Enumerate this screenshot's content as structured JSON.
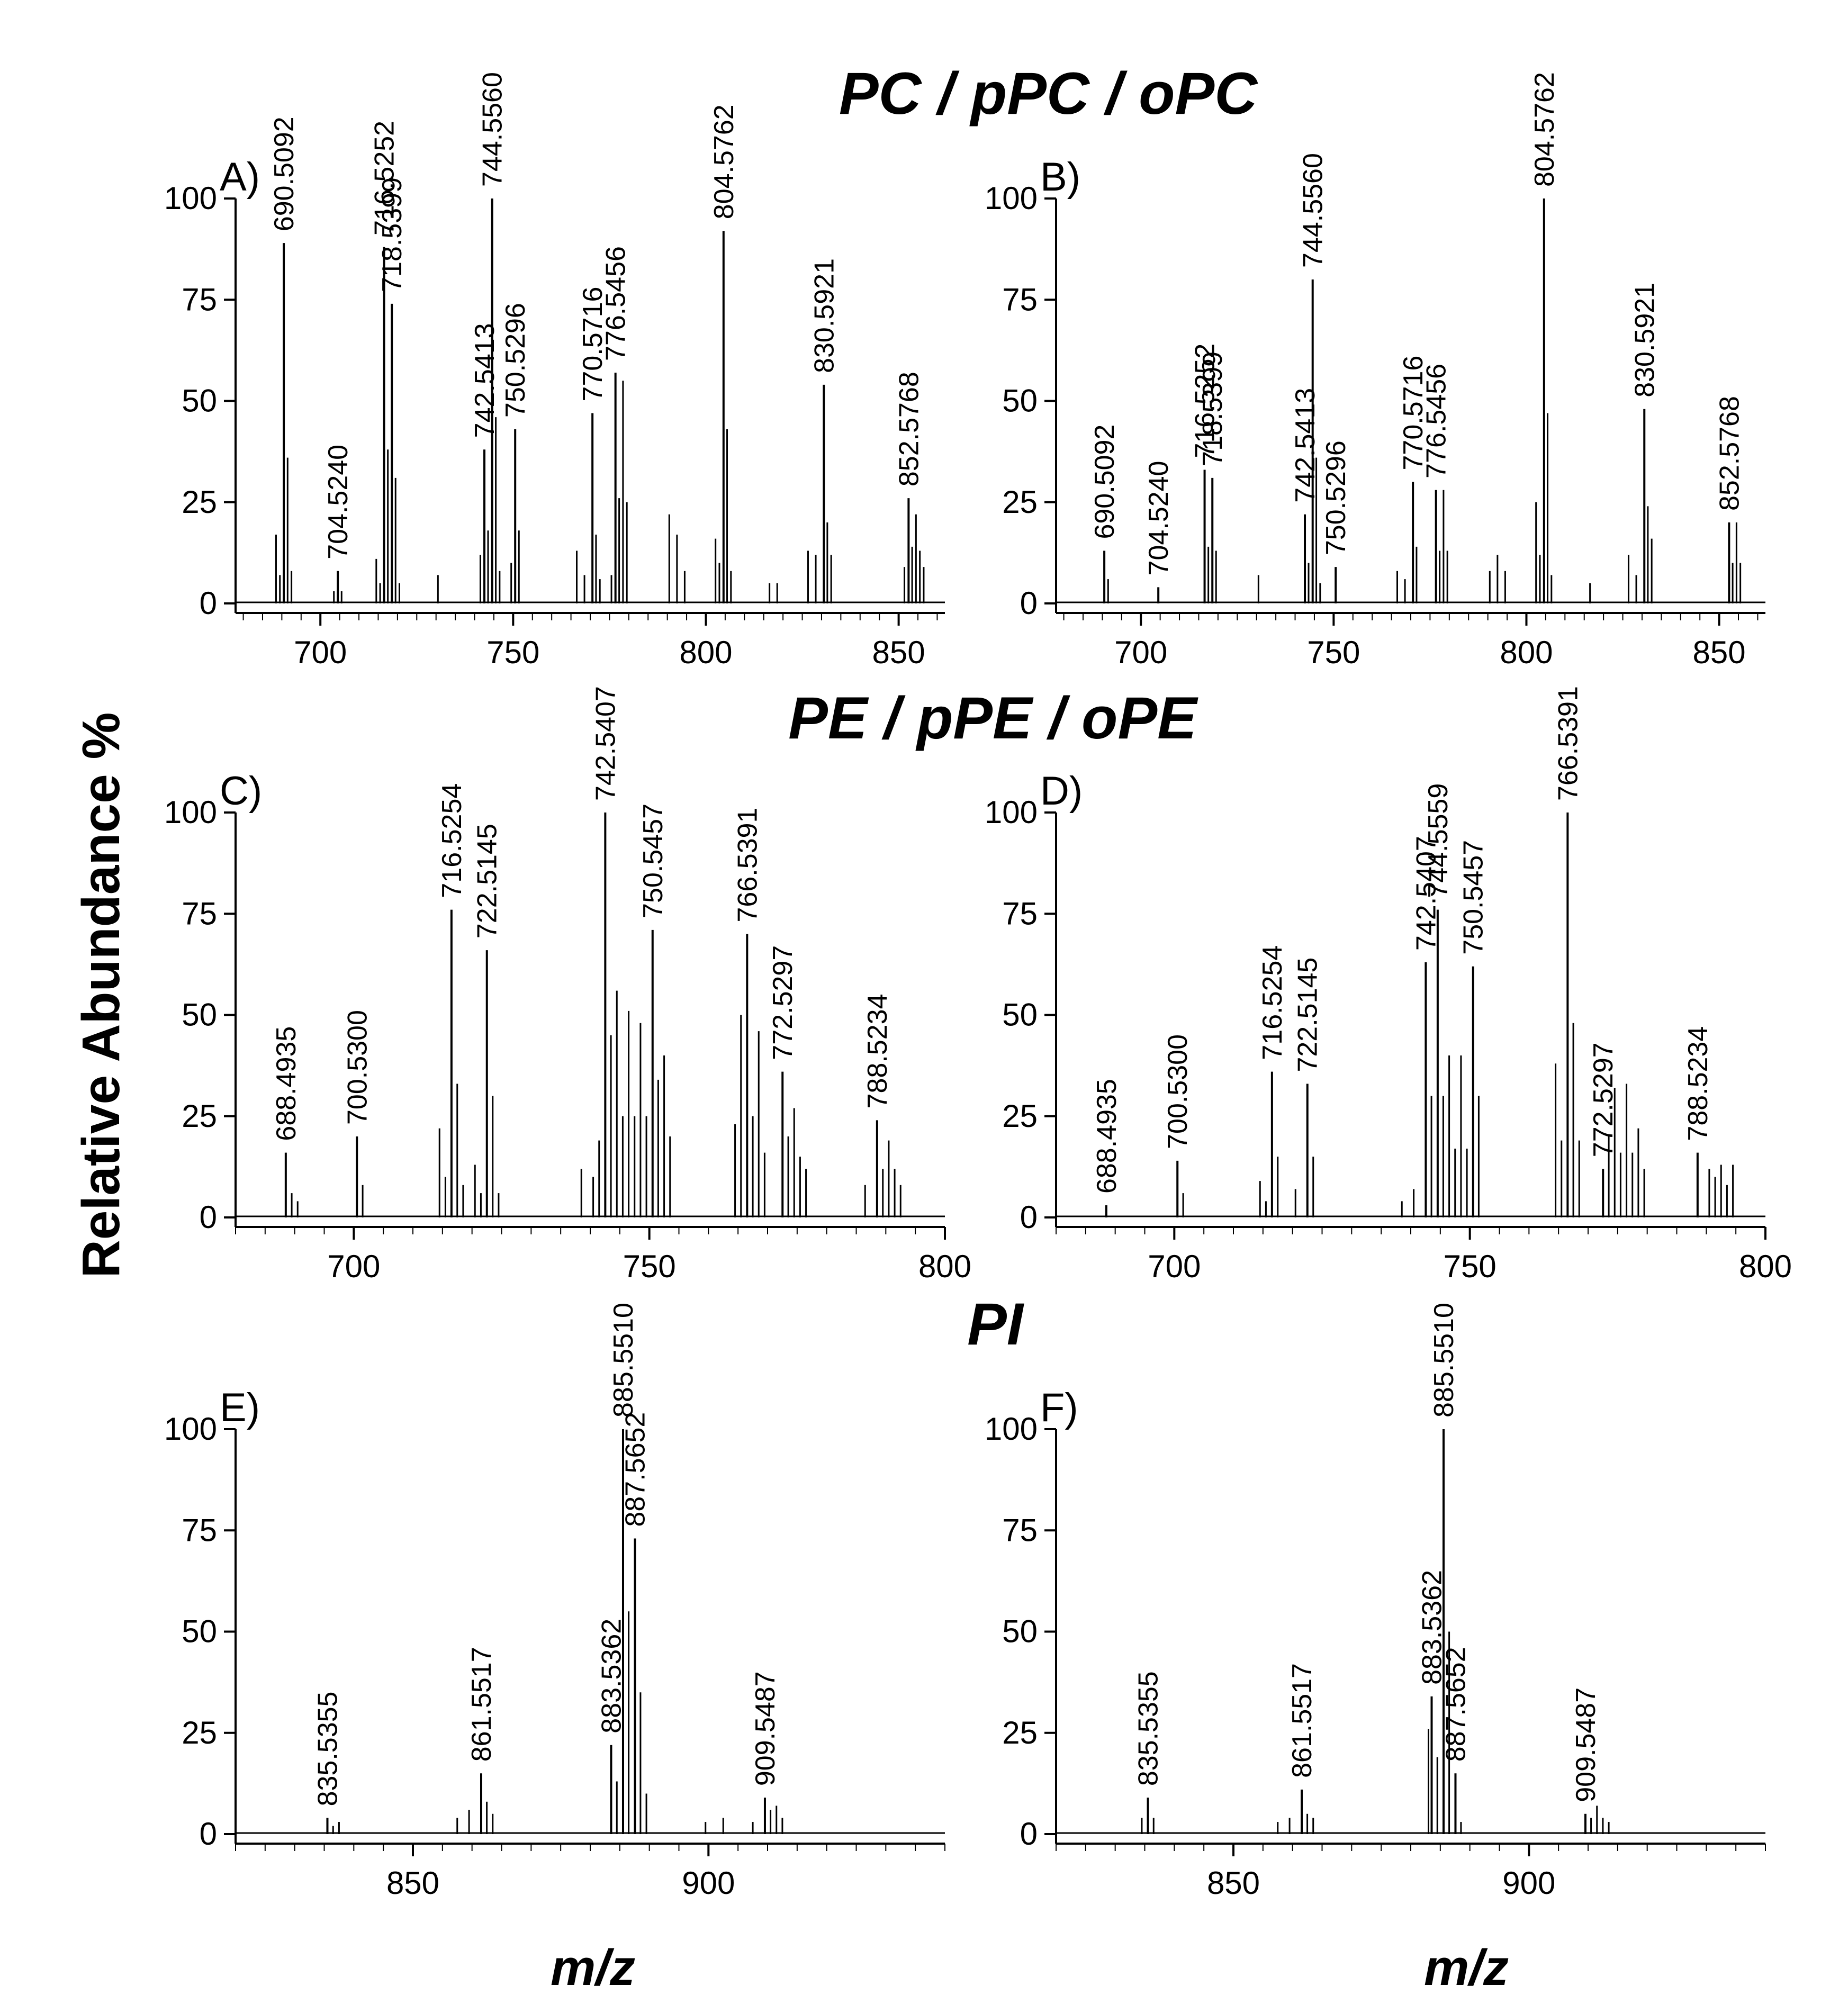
{
  "figure": {
    "section_titles": [
      "PC / pPC / oPC",
      "PE / pPE / oPE",
      "PI"
    ],
    "y_axis_label": "Relative Abundance %",
    "x_axis_label": "m/z"
  },
  "chart_data": [
    {
      "type": "bar",
      "panel": "A)",
      "xlim": [
        678,
        862
      ],
      "ylim": [
        0,
        100
      ],
      "xticks": [
        700,
        750,
        800,
        850
      ],
      "yticks": [
        0,
        25,
        50,
        75,
        100
      ],
      "labeled_peaks": [
        {
          "x": 690.5092,
          "y": 89,
          "label": "690.5092"
        },
        {
          "x": 704.524,
          "y": 8,
          "label": "704.5240"
        },
        {
          "x": 716.5252,
          "y": 88,
          "label": "716.5252"
        },
        {
          "x": 718.5399,
          "y": 74,
          "label": "718.5399"
        },
        {
          "x": 742.5413,
          "y": 38,
          "label": "742.5413"
        },
        {
          "x": 744.556,
          "y": 100,
          "label": "744.5560"
        },
        {
          "x": 750.5296,
          "y": 43,
          "label": "750.5296"
        },
        {
          "x": 770.5716,
          "y": 47,
          "label": "770.5716"
        },
        {
          "x": 776.5456,
          "y": 57,
          "label": "776.5456"
        },
        {
          "x": 804.5762,
          "y": 92,
          "label": "804.5762"
        },
        {
          "x": 830.5921,
          "y": 54,
          "label": "830.5921"
        },
        {
          "x": 852.5768,
          "y": 26,
          "label": "852.5768"
        }
      ],
      "minor_peaks": [
        [
          688.5,
          17
        ],
        [
          689.5,
          7
        ],
        [
          691.5,
          36
        ],
        [
          692.5,
          8
        ],
        [
          703.5,
          3
        ],
        [
          705.5,
          3
        ],
        [
          714.5,
          11
        ],
        [
          715.5,
          5
        ],
        [
          717.5,
          38
        ],
        [
          719.5,
          31
        ],
        [
          720.5,
          5
        ],
        [
          730.5,
          7
        ],
        [
          741.5,
          12
        ],
        [
          743.5,
          18
        ],
        [
          745.5,
          46
        ],
        [
          746.5,
          8
        ],
        [
          749.5,
          10
        ],
        [
          751.5,
          18
        ],
        [
          766.5,
          13
        ],
        [
          768.5,
          7
        ],
        [
          771.5,
          17
        ],
        [
          772.5,
          6
        ],
        [
          775.5,
          7
        ],
        [
          777.5,
          26
        ],
        [
          778.5,
          55
        ],
        [
          779.5,
          25
        ],
        [
          790.5,
          22
        ],
        [
          792.5,
          17
        ],
        [
          794.5,
          8
        ],
        [
          802.5,
          16
        ],
        [
          803.5,
          10
        ],
        [
          805.5,
          43
        ],
        [
          806.5,
          8
        ],
        [
          816.5,
          5
        ],
        [
          818.5,
          5
        ],
        [
          826.5,
          13
        ],
        [
          828.5,
          12
        ],
        [
          831.5,
          20
        ],
        [
          832.5,
          12
        ],
        [
          851.5,
          9
        ],
        [
          853.5,
          14
        ],
        [
          854.5,
          22
        ],
        [
          855.5,
          13
        ],
        [
          856.5,
          9
        ]
      ]
    },
    {
      "type": "bar",
      "panel": "B)",
      "xlim": [
        678,
        862
      ],
      "ylim": [
        0,
        100
      ],
      "xticks": [
        700,
        750,
        800,
        850
      ],
      "yticks": [
        0,
        25,
        50,
        75,
        100
      ],
      "labeled_peaks": [
        {
          "x": 690.5092,
          "y": 13,
          "label": "690.5092"
        },
        {
          "x": 704.524,
          "y": 4,
          "label": "704.5240"
        },
        {
          "x": 716.5252,
          "y": 33,
          "label": "716.5252"
        },
        {
          "x": 718.5399,
          "y": 31,
          "label": "718.5399"
        },
        {
          "x": 742.5413,
          "y": 22,
          "label": "742.5413"
        },
        {
          "x": 744.556,
          "y": 80,
          "label": "744.5560"
        },
        {
          "x": 750.5296,
          "y": 9,
          "label": "750.5296"
        },
        {
          "x": 770.5716,
          "y": 30,
          "label": "770.5716"
        },
        {
          "x": 776.5456,
          "y": 28,
          "label": "776.5456"
        },
        {
          "x": 804.5762,
          "y": 100,
          "label": "804.5762"
        },
        {
          "x": 830.5921,
          "y": 48,
          "label": "830.5921"
        },
        {
          "x": 852.5768,
          "y": 20,
          "label": "852.5768"
        }
      ],
      "minor_peaks": [
        [
          691.5,
          6
        ],
        [
          717.5,
          14
        ],
        [
          719.5,
          13
        ],
        [
          730.5,
          7
        ],
        [
          743.5,
          10
        ],
        [
          745.5,
          36
        ],
        [
          746.5,
          5
        ],
        [
          766.5,
          8
        ],
        [
          768.5,
          6
        ],
        [
          771.5,
          14
        ],
        [
          777.5,
          13
        ],
        [
          778.5,
          28
        ],
        [
          779.5,
          13
        ],
        [
          790.5,
          8
        ],
        [
          792.5,
          12
        ],
        [
          794.5,
          8
        ],
        [
          802.5,
          25
        ],
        [
          803.5,
          12
        ],
        [
          805.5,
          47
        ],
        [
          806.5,
          7
        ],
        [
          816.5,
          5
        ],
        [
          826.5,
          12
        ],
        [
          828.5,
          7
        ],
        [
          831.5,
          24
        ],
        [
          832.5,
          16
        ],
        [
          853.5,
          10
        ],
        [
          854.5,
          20
        ],
        [
          855.5,
          10
        ]
      ]
    },
    {
      "type": "bar",
      "panel": "C)",
      "xlim": [
        680,
        800
      ],
      "ylim": [
        0,
        100
      ],
      "xticks": [
        700,
        750,
        800
      ],
      "yticks": [
        0,
        25,
        50,
        75,
        100
      ],
      "labeled_peaks": [
        {
          "x": 688.4935,
          "y": 16,
          "label": "688.4935"
        },
        {
          "x": 700.53,
          "y": 20,
          "label": "700.5300"
        },
        {
          "x": 716.5254,
          "y": 76,
          "label": "716.5254"
        },
        {
          "x": 722.5145,
          "y": 66,
          "label": "722.5145"
        },
        {
          "x": 742.5407,
          "y": 100,
          "label": "742.5407"
        },
        {
          "x": 750.5457,
          "y": 71,
          "label": "750.5457"
        },
        {
          "x": 766.5391,
          "y": 70,
          "label": "766.5391"
        },
        {
          "x": 772.5297,
          "y": 36,
          "label": "772.5297"
        },
        {
          "x": 788.5234,
          "y": 24,
          "label": "788.5234"
        }
      ],
      "minor_peaks": [
        [
          689.5,
          6
        ],
        [
          690.5,
          4
        ],
        [
          701.5,
          8
        ],
        [
          714.5,
          22
        ],
        [
          715.5,
          10
        ],
        [
          717.5,
          33
        ],
        [
          718.5,
          8
        ],
        [
          720.5,
          13
        ],
        [
          721.5,
          6
        ],
        [
          723.5,
          30
        ],
        [
          724.5,
          6
        ],
        [
          738.5,
          12
        ],
        [
          740.5,
          10
        ],
        [
          741.5,
          19
        ],
        [
          743.5,
          45
        ],
        [
          744.5,
          56
        ],
        [
          745.5,
          25
        ],
        [
          746.5,
          51
        ],
        [
          747.5,
          25
        ],
        [
          748.5,
          48
        ],
        [
          749.5,
          25
        ],
        [
          751.5,
          34
        ],
        [
          752.5,
          40
        ],
        [
          753.5,
          20
        ],
        [
          764.5,
          23
        ],
        [
          765.5,
          50
        ],
        [
          767.5,
          25
        ],
        [
          768.5,
          46
        ],
        [
          769.5,
          16
        ],
        [
          773.5,
          20
        ],
        [
          774.5,
          27
        ],
        [
          775.5,
          15
        ],
        [
          776.5,
          12
        ],
        [
          786.5,
          8
        ],
        [
          789.5,
          12
        ],
        [
          790.5,
          19
        ],
        [
          791.5,
          12
        ],
        [
          792.5,
          8
        ]
      ]
    },
    {
      "type": "bar",
      "panel": "D)",
      "xlim": [
        680,
        800
      ],
      "ylim": [
        0,
        100
      ],
      "xticks": [
        700,
        750,
        800
      ],
      "yticks": [
        0,
        25,
        50,
        75,
        100
      ],
      "labeled_peaks": [
        {
          "x": 688.4935,
          "y": 3,
          "label": "688.4935"
        },
        {
          "x": 700.53,
          "y": 14,
          "label": "700.5300"
        },
        {
          "x": 716.5254,
          "y": 36,
          "label": "716.5254"
        },
        {
          "x": 722.5145,
          "y": 33,
          "label": "722.5145"
        },
        {
          "x": 742.5407,
          "y": 63,
          "label": "742.5407"
        },
        {
          "x": 744.5559,
          "y": 76,
          "label": "744.5559"
        },
        {
          "x": 750.5457,
          "y": 62,
          "label": "750.5457"
        },
        {
          "x": 766.5391,
          "y": 100,
          "label": "766.5391"
        },
        {
          "x": 772.5297,
          "y": 12,
          "label": "772.5297"
        },
        {
          "x": 788.5234,
          "y": 16,
          "label": "788.5234"
        }
      ],
      "minor_peaks": [
        [
          701.5,
          6
        ],
        [
          714.5,
          9
        ],
        [
          715.5,
          4
        ],
        [
          717.5,
          15
        ],
        [
          720.5,
          7
        ],
        [
          723.5,
          15
        ],
        [
          738.5,
          4
        ],
        [
          740.5,
          7
        ],
        [
          743.5,
          30
        ],
        [
          745.5,
          30
        ],
        [
          746.5,
          40
        ],
        [
          747.5,
          17
        ],
        [
          748.5,
          40
        ],
        [
          749.5,
          17
        ],
        [
          751.5,
          30
        ],
        [
          764.5,
          38
        ],
        [
          765.5,
          19
        ],
        [
          767.5,
          48
        ],
        [
          768.5,
          19
        ],
        [
          773.5,
          20
        ],
        [
          774.5,
          32
        ],
        [
          775.5,
          16
        ],
        [
          776.5,
          33
        ],
        [
          777.5,
          16
        ],
        [
          778.5,
          22
        ],
        [
          779.5,
          12
        ],
        [
          790.5,
          12
        ],
        [
          791.5,
          10
        ],
        [
          792.5,
          13
        ],
        [
          793.5,
          8
        ],
        [
          794.5,
          13
        ]
      ]
    },
    {
      "type": "bar",
      "panel": "E)",
      "xlim": [
        820,
        940
      ],
      "ylim": [
        0,
        100
      ],
      "xticks": [
        850,
        900
      ],
      "yticks": [
        0,
        25,
        50,
        75,
        100
      ],
      "labeled_peaks": [
        {
          "x": 835.5355,
          "y": 4,
          "label": "835.5355"
        },
        {
          "x": 861.5517,
          "y": 15,
          "label": "861.5517"
        },
        {
          "x": 883.5362,
          "y": 22,
          "label": "883.5362"
        },
        {
          "x": 885.551,
          "y": 100,
          "label": "885.5510"
        },
        {
          "x": 887.5652,
          "y": 73,
          "label": "887.5652"
        },
        {
          "x": 909.5487,
          "y": 9,
          "label": "909.5487"
        }
      ],
      "minor_peaks": [
        [
          836.5,
          2
        ],
        [
          837.5,
          3
        ],
        [
          857.5,
          4
        ],
        [
          859.5,
          6
        ],
        [
          862.5,
          8
        ],
        [
          863.5,
          5
        ],
        [
          884.5,
          13
        ],
        [
          886.5,
          55
        ],
        [
          888.5,
          35
        ],
        [
          889.5,
          10
        ],
        [
          899.5,
          3
        ],
        [
          902.5,
          4
        ],
        [
          907.5,
          3
        ],
        [
          910.5,
          6
        ],
        [
          911.5,
          7
        ],
        [
          912.5,
          4
        ]
      ]
    },
    {
      "type": "bar",
      "panel": "F)",
      "xlim": [
        820,
        940
      ],
      "ylim": [
        0,
        100
      ],
      "xticks": [
        850,
        900
      ],
      "yticks": [
        0,
        25,
        50,
        75,
        100
      ],
      "labeled_peaks": [
        {
          "x": 835.5355,
          "y": 9,
          "label": "835.5355"
        },
        {
          "x": 861.5517,
          "y": 11,
          "label": "861.5517"
        },
        {
          "x": 883.5362,
          "y": 34,
          "label": "883.5362"
        },
        {
          "x": 885.551,
          "y": 100,
          "label": "885.5510"
        },
        {
          "x": 887.5652,
          "y": 15,
          "label": "887.5652"
        },
        {
          "x": 909.5487,
          "y": 5,
          "label": "909.5487"
        }
      ],
      "minor_peaks": [
        [
          834.5,
          4
        ],
        [
          836.5,
          4
        ],
        [
          857.5,
          3
        ],
        [
          859.5,
          4
        ],
        [
          862.5,
          5
        ],
        [
          863.5,
          4
        ],
        [
          883.0,
          26
        ],
        [
          884.5,
          19
        ],
        [
          886.5,
          50
        ],
        [
          888.5,
          3
        ],
        [
          910.5,
          4
        ],
        [
          911.5,
          7
        ],
        [
          912.5,
          4
        ],
        [
          913.5,
          3
        ]
      ]
    }
  ]
}
